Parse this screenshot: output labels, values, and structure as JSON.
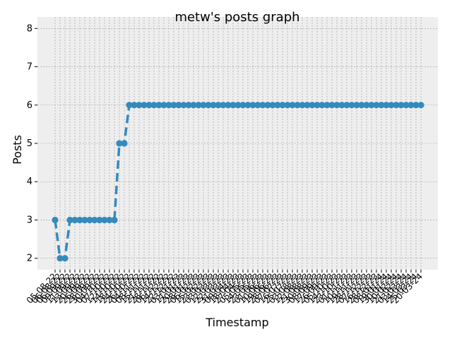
{
  "chart_data": {
    "type": "line",
    "title": "metw's posts graph",
    "xlabel": "Timestamp",
    "ylabel": "Posts",
    "ylim": [
      1.7,
      8.3
    ],
    "y_ticks": [
      2,
      3,
      4,
      5,
      6,
      7,
      8
    ],
    "grid": true,
    "x_tick_labels": [
      "05-08-22",
      "06-08-22",
      "06-09-22",
      "09-09-22",
      "11-09-22",
      "13-09-22",
      "20-09-22",
      "26-09-22",
      "28-09-22",
      "30-09-22",
      "04-10-22",
      "07-10-22",
      "12-10-22",
      "14-10-22",
      "18-10-22",
      "24-10-22",
      "26-10-22",
      "04-11-22",
      "08-11-22",
      "15-11-22",
      "21-11-22",
      "28-11-22",
      "06-12-22",
      "14-12-22",
      "22-12-22",
      "03-01-23",
      "11-01-23",
      "20-01-23",
      "28-01-23",
      "06-02-23",
      "15-02-23",
      "23-02-23",
      "03-03-23",
      "12-03-23",
      "22-03-23",
      "31-03-23",
      "09-04-23",
      "18-04-23",
      "27-04-23",
      "05-05-23",
      "14-05-23",
      "23-05-23",
      "01-06-23",
      "10-06-23",
      "19-06-23",
      "28-06-23",
      "07-07-23",
      "16-07-23",
      "25-07-23",
      "03-08-23",
      "12-08-23",
      "21-08-23",
      "30-08-23",
      "08-09-23",
      "17-09-23",
      "26-09-23",
      "05-10-23",
      "14-10-23",
      "23-10-23",
      "01-11-23",
      "10-11-23",
      "19-11-23",
      "28-11-23",
      "07-12-23",
      "16-12-23",
      "28-12-23",
      "08-01-24",
      "19-01-24",
      "30-01-24",
      "10-02-24",
      "21-02-24",
      "03-03-24",
      "14-03-24",
      "25-03-24",
      "20-03-24"
    ],
    "series": [
      {
        "values": [
          3,
          2,
          2,
          3,
          3,
          3,
          3,
          3,
          3,
          3,
          3,
          3,
          3,
          5,
          5,
          6,
          6,
          6,
          6,
          6,
          6,
          6,
          6,
          6,
          6,
          6,
          6,
          6,
          6,
          6,
          6,
          6,
          6,
          6,
          6,
          6,
          6,
          6,
          6,
          6,
          6,
          6,
          6,
          6,
          6,
          6,
          6,
          6,
          6,
          6,
          6,
          6,
          6,
          6,
          6,
          6,
          6,
          6,
          6,
          6,
          6,
          6,
          6,
          6,
          6,
          6,
          6,
          6,
          6,
          6,
          6,
          6,
          6,
          6,
          6
        ],
        "color": "#348ABD"
      }
    ]
  }
}
